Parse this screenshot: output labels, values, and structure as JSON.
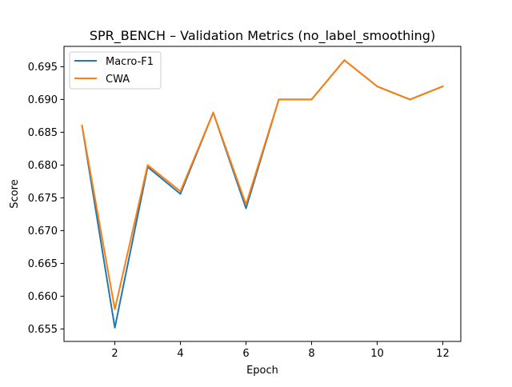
{
  "chart_data": {
    "type": "line",
    "title": "SPR_BENCH – Validation Metrics (no_label_smoothing)",
    "xlabel": "Epoch",
    "ylabel": "Score",
    "xlim": [
      0.45,
      12.55
    ],
    "ylim": [
      0.6531,
      0.6981
    ],
    "xticks": [
      2,
      4,
      6,
      8,
      10,
      12
    ],
    "yticks": [
      0.655,
      0.66,
      0.665,
      0.67,
      0.675,
      0.68,
      0.685,
      0.69,
      0.695
    ],
    "ytick_labels": [
      "0.655",
      "0.660",
      "0.665",
      "0.670",
      "0.675",
      "0.680",
      "0.685",
      "0.690",
      "0.695"
    ],
    "grid": false,
    "legend_position": "upper-left",
    "x": [
      1,
      2,
      3,
      4,
      5,
      6,
      7,
      8,
      9,
      10,
      11,
      12
    ],
    "series": [
      {
        "name": "Macro-F1",
        "color": "#1f77b4",
        "values": [
          0.686,
          0.6552,
          0.6797,
          0.6756,
          0.688,
          0.6734,
          0.69,
          0.69,
          0.696,
          0.692,
          0.69,
          0.692
        ]
      },
      {
        "name": "CWA",
        "color": "#ff7f0e",
        "values": [
          0.686,
          0.658,
          0.68,
          0.676,
          0.688,
          0.674,
          0.69,
          0.69,
          0.696,
          0.692,
          0.69,
          0.692
        ]
      }
    ]
  }
}
